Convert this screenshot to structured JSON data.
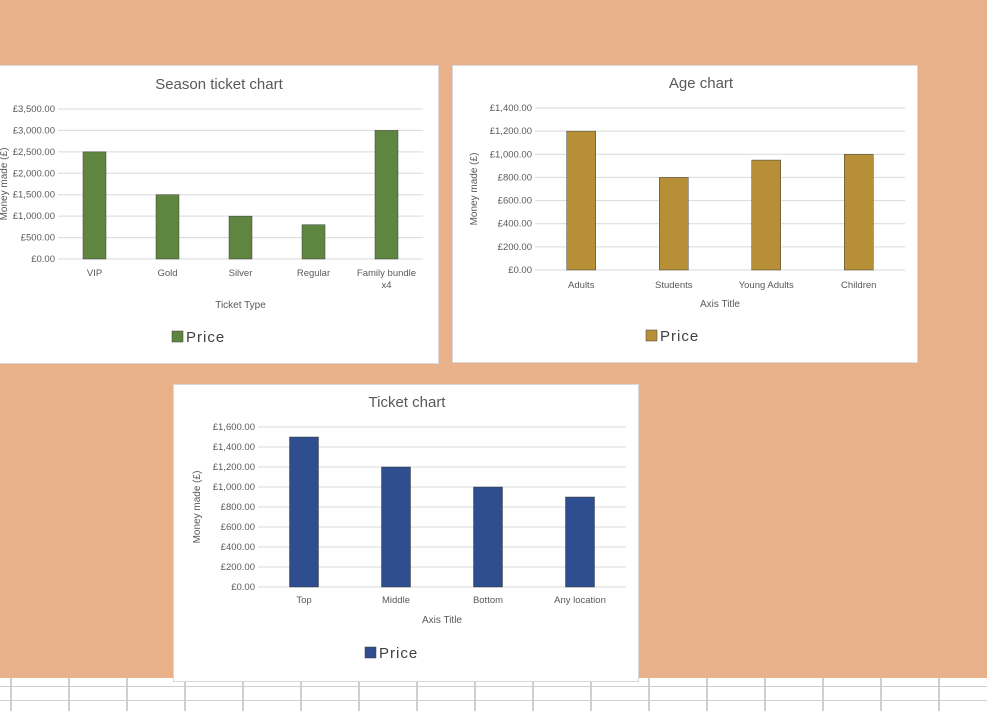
{
  "chart_data": [
    {
      "type": "bar",
      "title": "Season ticket chart",
      "xlabel": "Ticket Type",
      "ylabel": "Money made (£)",
      "categories": [
        "VIP",
        "Gold",
        "Silver",
        "Regular",
        "Family bundle x4"
      ],
      "series": [
        {
          "name": "Price",
          "color": "#5F8641",
          "values": [
            2500,
            1500,
            1000,
            800,
            3000
          ]
        }
      ],
      "yticks": [
        "£0.00",
        "£500.00",
        "£1,000.00",
        "£1,500.00",
        "£2,000.00",
        "£2,500.00",
        "£3,000.00",
        "£3,500.00"
      ],
      "ylim": [
        0,
        3500
      ],
      "grid": true,
      "legend": "bottom"
    },
    {
      "type": "bar",
      "title": "Age chart",
      "xlabel": "Axis Title",
      "ylabel": "Money made (£)",
      "categories": [
        "Adults",
        "Students",
        "Young Adults",
        "Children"
      ],
      "series": [
        {
          "name": "Price",
          "color": "#B78F37",
          "values": [
            1200,
            800,
            950,
            1000
          ]
        }
      ],
      "yticks": [
        "£0.00",
        "£200.00",
        "£400.00",
        "£600.00",
        "£800.00",
        "£1,000.00",
        "£1,200.00",
        "£1,400.00"
      ],
      "ylim": [
        0,
        1400
      ],
      "grid": true,
      "legend": "bottom"
    },
    {
      "type": "bar",
      "title": "Ticket chart",
      "xlabel": "Axis Title",
      "ylabel": "Money made (£)",
      "categories": [
        "Top",
        "Middle",
        "Bottom",
        "Any location"
      ],
      "series": [
        {
          "name": "Price",
          "color": "#2E4E8F",
          "values": [
            1500,
            1200,
            1000,
            900
          ]
        }
      ],
      "yticks": [
        "£0.00",
        "£200.00",
        "£400.00",
        "£600.00",
        "£800.00",
        "£1,000.00",
        "£1,200.00",
        "£1,400.00",
        "£1,600.00"
      ],
      "ylim": [
        0,
        1600
      ],
      "grid": true,
      "legend": "bottom"
    }
  ]
}
